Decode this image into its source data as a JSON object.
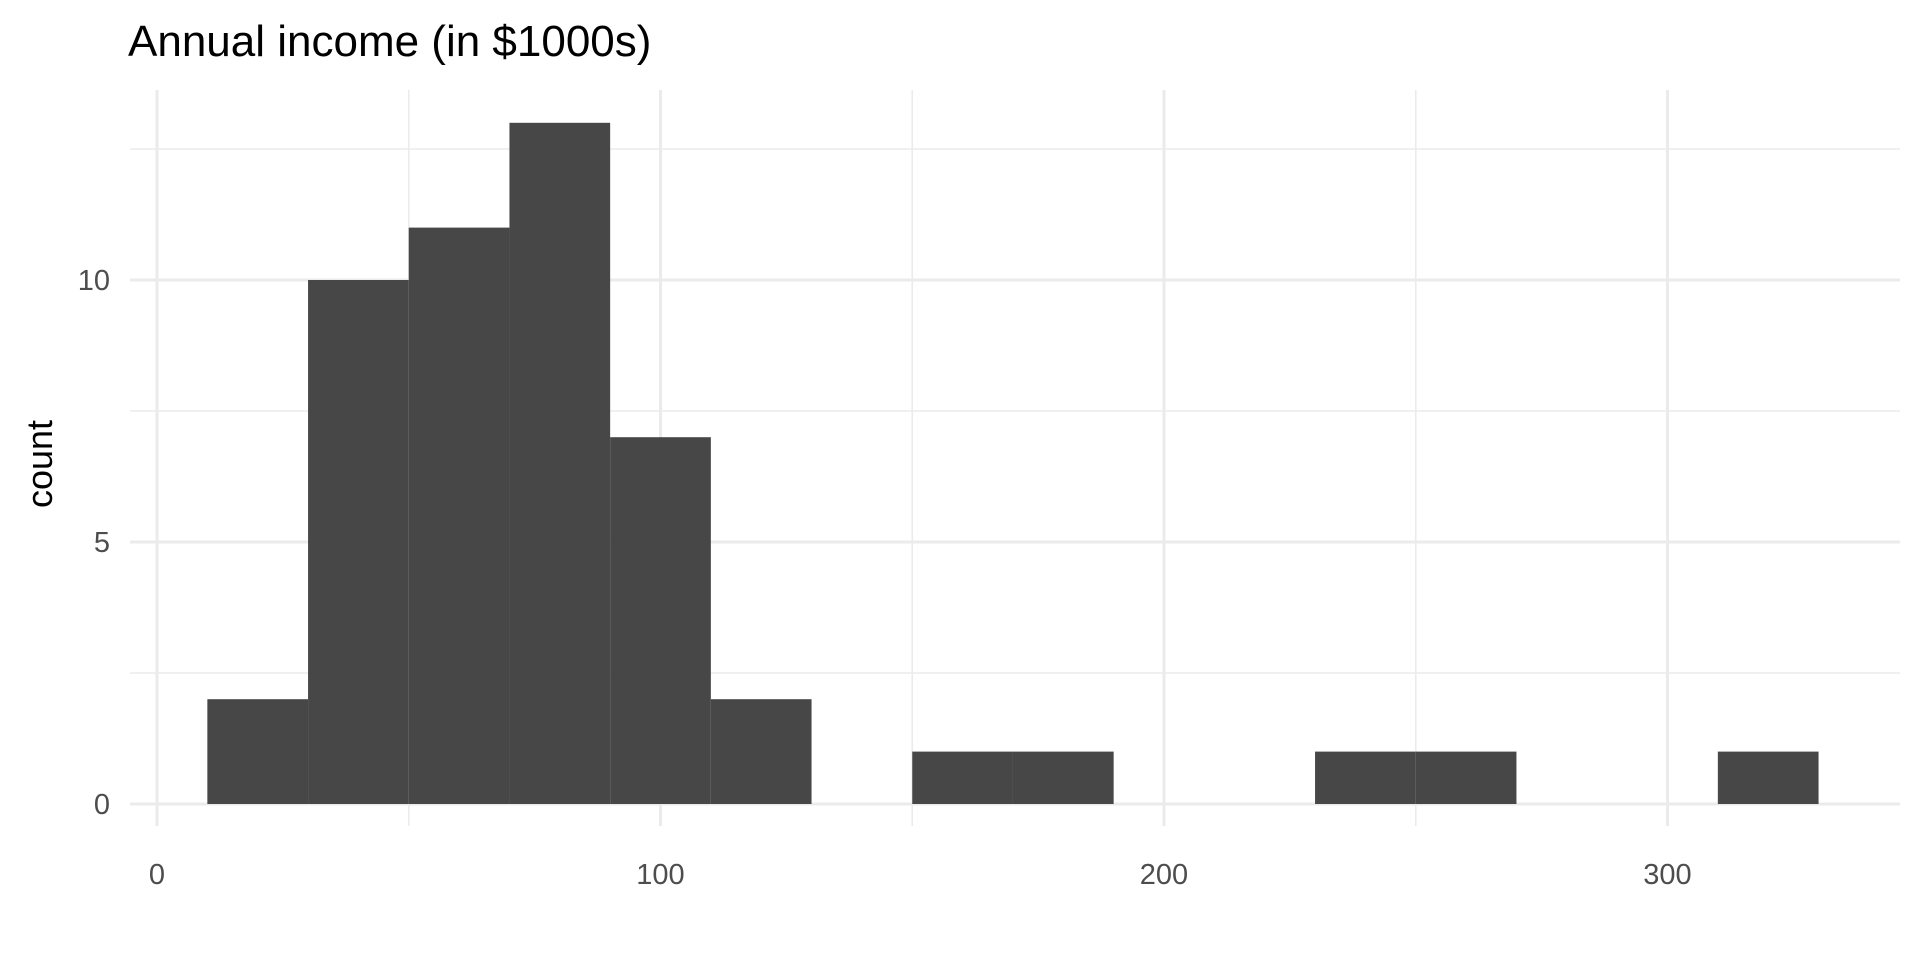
{
  "chart_data": {
    "type": "histogram",
    "title": "Annual income (in $1000s)",
    "xlabel": "",
    "ylabel": "count",
    "xlim": [
      -5,
      345
    ],
    "ylim": [
      0,
      13
    ],
    "x_ticks": [
      0,
      100,
      200,
      300
    ],
    "y_ticks": [
      0,
      5,
      10
    ],
    "grid": true,
    "bin_width": 20,
    "bins": [
      {
        "x0": 10,
        "x1": 30,
        "count": 2
      },
      {
        "x0": 30,
        "x1": 50,
        "count": 10
      },
      {
        "x0": 50,
        "x1": 70,
        "count": 11
      },
      {
        "x0": 70,
        "x1": 90,
        "count": 13
      },
      {
        "x0": 90,
        "x1": 110,
        "count": 7
      },
      {
        "x0": 110,
        "x1": 130,
        "count": 2
      },
      {
        "x0": 130,
        "x1": 150,
        "count": 0
      },
      {
        "x0": 150,
        "x1": 170,
        "count": 1
      },
      {
        "x0": 170,
        "x1": 190,
        "count": 1
      },
      {
        "x0": 190,
        "x1": 210,
        "count": 0
      },
      {
        "x0": 210,
        "x1": 230,
        "count": 0
      },
      {
        "x0": 230,
        "x1": 250,
        "count": 1
      },
      {
        "x0": 250,
        "x1": 270,
        "count": 1
      },
      {
        "x0": 270,
        "x1": 290,
        "count": 0
      },
      {
        "x0": 290,
        "x1": 310,
        "count": 0
      },
      {
        "x0": 310,
        "x1": 330,
        "count": 1
      }
    ],
    "bar_color": "#474747",
    "grid_color": "#ebebeb",
    "background": "#ffffff"
  }
}
